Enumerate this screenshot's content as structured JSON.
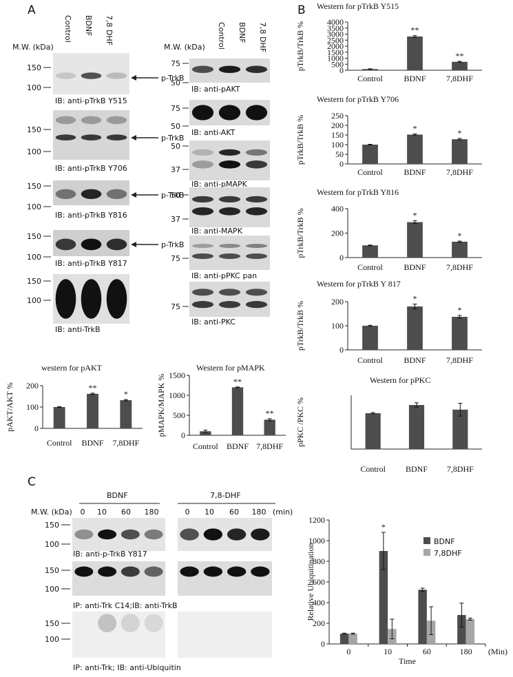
{
  "panel_labels": [
    "A",
    "B",
    "C"
  ],
  "blots_a_left": {
    "mw_header": "M.W. (kDa)",
    "lanes": [
      "Control",
      "BDNF",
      "7,8 DHF"
    ],
    "blots": [
      {
        "markers": [
          "150",
          "100"
        ],
        "caption": "IB: anti-pTrkB Y515",
        "arrow": "p-TrkB"
      },
      {
        "markers": [
          "150",
          "100"
        ],
        "caption": "IB: anti-pTrkB Y706",
        "arrow": "p-TrkB"
      },
      {
        "markers": [
          "150",
          "100"
        ],
        "caption": "IB: anti-pTrkB Y816",
        "arrow": "p-TrkB"
      },
      {
        "markers": [
          "150",
          "100"
        ],
        "caption": "IB: anti-pTrkB Y817",
        "arrow": "p-TrkB"
      },
      {
        "markers": [
          "150",
          "100"
        ],
        "caption": "IB: anti-TrkB"
      }
    ]
  },
  "blots_a_right": {
    "mw_header": "M.W. (kDa)",
    "lanes": [
      "Control",
      "BDNF",
      "7,8 DHF"
    ],
    "blots": [
      {
        "markers": [
          "75",
          "50"
        ],
        "caption": "IB: anti-pAKT"
      },
      {
        "markers": [
          "75",
          "50"
        ],
        "caption": "IB: anti-AKT"
      },
      {
        "markers": [
          "50",
          "37"
        ],
        "caption": "IB: anti-pMAPK"
      },
      {
        "markers": [
          "50",
          "37"
        ],
        "caption": "IB: anti-MAPK"
      },
      {
        "markers": [
          "75"
        ],
        "caption": "IB: anti-pPKC pan"
      },
      {
        "markers": [
          "75"
        ],
        "caption": "IB: anti-PKC"
      }
    ]
  },
  "blots_c": {
    "mw_header": "M.W. (kDa)",
    "groups": [
      "BDNF",
      "7,8-DHF"
    ],
    "times_bdnf": [
      "0",
      "10",
      "60",
      "180"
    ],
    "times_dhf": [
      "0",
      "10",
      "60",
      "180"
    ],
    "time_unit": "(min)",
    "blots": [
      {
        "markers": [
          "150",
          "100"
        ],
        "caption": "IB: anti-p-TrkB Y817"
      },
      {
        "markers": [
          "150",
          "100"
        ],
        "caption": "IP: anti-Trk C14;IB: anti-TrkB"
      },
      {
        "markers": [
          "150",
          "100"
        ],
        "caption": "IP: anti-Trk; IB: anti-Ubiquitin"
      }
    ]
  },
  "chart_data": [
    {
      "type": "bar",
      "title": "Western for pTrkB Y515",
      "ylabel": "pTrkB/TrkB %",
      "categories": [
        "Control",
        "BDNF",
        "7,8DHF"
      ],
      "values": [
        100,
        2800,
        700
      ],
      "errors": [
        20,
        80,
        40
      ],
      "annotations": [
        null,
        "**",
        "**"
      ],
      "color": "#4d4d4d",
      "ylim": [
        0,
        4000
      ],
      "yticks": [
        0,
        500,
        1000,
        1500,
        2000,
        2500,
        3000,
        3500,
        4000
      ]
    },
    {
      "type": "bar",
      "title": "Western for pTrkB Y706",
      "ylabel": "pTrkB/TrkB %",
      "categories": [
        "Control",
        "BDNF",
        "7,8DHF"
      ],
      "values": [
        100,
        152,
        128
      ],
      "errors": [
        2,
        4,
        4
      ],
      "annotations": [
        null,
        "*",
        "*"
      ],
      "color": "#4d4d4d",
      "ylim": [
        0,
        250
      ],
      "yticks": [
        0,
        50,
        100,
        150,
        200,
        250
      ]
    },
    {
      "type": "bar",
      "title": "Western for pTrkB Y816",
      "ylabel": "pTrkB/TrkB %",
      "categories": [
        "Control",
        "BDNF",
        "7,8DHF"
      ],
      "values": [
        100,
        290,
        130
      ],
      "errors": [
        3,
        12,
        5
      ],
      "annotations": [
        null,
        "*",
        "*"
      ],
      "color": "#4d4d4d",
      "ylim": [
        0,
        400
      ],
      "yticks": [
        0,
        200,
        400
      ]
    },
    {
      "type": "bar",
      "title": "Western for pTrkB Y 817",
      "ylabel": "pTrkB/TrkB %",
      "categories": [
        "Control",
        "BDNF",
        "7,8DHF"
      ],
      "values": [
        100,
        180,
        137
      ],
      "errors": [
        2,
        10,
        6
      ],
      "annotations": [
        null,
        "*",
        "*"
      ],
      "color": "#4d4d4d",
      "ylim": [
        0,
        200
      ],
      "yticks": [
        0,
        100,
        200
      ]
    },
    {
      "type": "bar",
      "title": "Western for pPKC",
      "ylabel": "pPKC /PKC %",
      "categories": [
        "Control",
        "BDNF",
        "7,8DHF"
      ],
      "values": [
        100,
        123,
        110
      ],
      "errors": [
        2,
        6,
        18
      ],
      "color": "#4d4d4d",
      "ylim": [
        0,
        150
      ]
    },
    {
      "type": "bar",
      "title": "western for pAKT",
      "ylabel": "pAKT/AKT %",
      "categories": [
        "Control",
        "BDNF",
        "7,8DHF"
      ],
      "values": [
        100,
        162,
        132
      ],
      "errors": [
        2,
        3,
        3
      ],
      "annotations": [
        null,
        "**",
        "*"
      ],
      "color": "#4d4d4d",
      "ylim": [
        0,
        200
      ],
      "yticks": [
        0,
        100,
        200
      ]
    },
    {
      "type": "bar",
      "title": "Western for pMAPK",
      "ylabel": "pMAPK/MAPK %",
      "categories": [
        "Control",
        "BDNF",
        "7,8DHF"
      ],
      "values": [
        100,
        1200,
        390
      ],
      "errors": [
        30,
        10,
        25
      ],
      "annotations": [
        null,
        "**",
        "**"
      ],
      "color": "#4d4d4d",
      "ylim": [
        0,
        1500
      ],
      "yticks": [
        0,
        500,
        1000,
        1500
      ]
    },
    {
      "type": "bar",
      "ylabel": "Relative Ubiquitination",
      "xlabel": "Time",
      "x_unit": "(Min)",
      "categories": [
        "0",
        "10",
        "60",
        "180"
      ],
      "series": [
        {
          "name": "BDNF",
          "color": "#4d4d4d",
          "values": [
            100,
            900,
            525,
            280
          ],
          "errors": [
            5,
            180,
            15,
            115
          ],
          "annotations": [
            null,
            "*",
            null,
            null
          ]
        },
        {
          "name": "7,8DHF",
          "color": "#a6a6a6",
          "values": [
            100,
            145,
            225,
            240
          ],
          "errors": [
            5,
            95,
            135,
            10
          ]
        }
      ],
      "ylim": [
        0,
        1200
      ],
      "yticks": [
        0,
        200,
        400,
        600,
        800,
        1000,
        1200
      ]
    }
  ]
}
